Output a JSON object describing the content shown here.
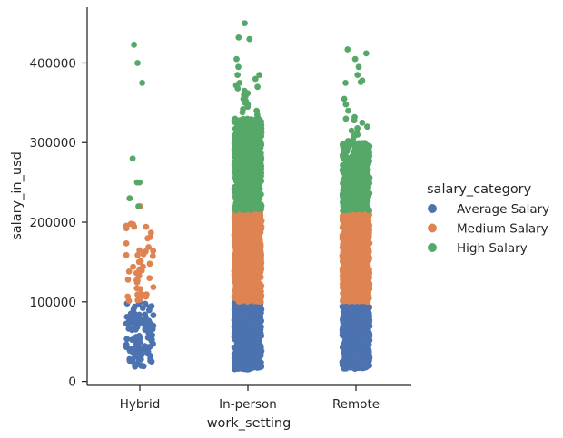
{
  "chart_data": {
    "type": "scatter",
    "subtype": "strip",
    "title": "",
    "xlabel": "work_setting",
    "ylabel": "salary_in_usd",
    "categories": [
      "Hybrid",
      "In-person",
      "Remote"
    ],
    "ylim": [
      -5000,
      470000
    ],
    "yticks": [
      0,
      100000,
      200000,
      300000,
      400000
    ],
    "ytick_labels": [
      "0",
      "100000",
      "200000",
      "300000",
      "400000"
    ],
    "grid": false,
    "legend": {
      "title": "salary_category",
      "placement": "right",
      "entries": [
        "Average Salary",
        "Medium Salary",
        "High Salary"
      ]
    },
    "series": [
      {
        "name": "Average Salary",
        "color": "#4c72b0",
        "points": [
          {
            "category": "Hybrid",
            "range": [
              18000,
              100000
            ],
            "count": 110
          },
          {
            "category": "In-person",
            "range": [
              15000,
              100000
            ],
            "count": 650
          },
          {
            "category": "Remote",
            "range": [
              16000,
              96000
            ],
            "count": 650
          }
        ]
      },
      {
        "name": "Medium Salary",
        "color": "#dd8452",
        "points": [
          {
            "category": "Hybrid",
            "range": [
              100000,
              200000
            ],
            "count": 45,
            "extra_values": [
              220000
            ]
          },
          {
            "category": "In-person",
            "range": [
              100000,
              215000
            ],
            "count": 1000
          },
          {
            "category": "Remote",
            "range": [
              100000,
              215000
            ],
            "count": 1000
          }
        ]
      },
      {
        "name": "High Salary",
        "color": "#55a868",
        "points": [
          {
            "category": "Hybrid",
            "values": [
              423000,
              400000,
              375000,
              280000,
              250000,
              250000,
              230000,
              220000
            ]
          },
          {
            "category": "In-person",
            "range": [
              215000,
              330000
            ],
            "count": 700,
            "extra_values": [
              450000,
              432000,
              430000,
              405000,
              395000,
              385000,
              385000,
              380000,
              375000,
              372000,
              370000,
              368000,
              365000,
              362000,
              360000,
              358000,
              355000,
              352000,
              350000,
              348000,
              345000,
              342000,
              340000,
              338000,
              335000
            ]
          },
          {
            "category": "Remote",
            "range": [
              215000,
              300000
            ],
            "count": 420,
            "extra_values": [
              417000,
              412000,
              405000,
              395000,
              385000,
              378000,
              376000,
              375000,
              355000,
              348000,
              340000,
              332000,
              330000,
              328000,
              325000,
              320000,
              318000,
              315000,
              312000,
              310000,
              308000,
              305000,
              302000
            ]
          }
        ]
      }
    ]
  }
}
